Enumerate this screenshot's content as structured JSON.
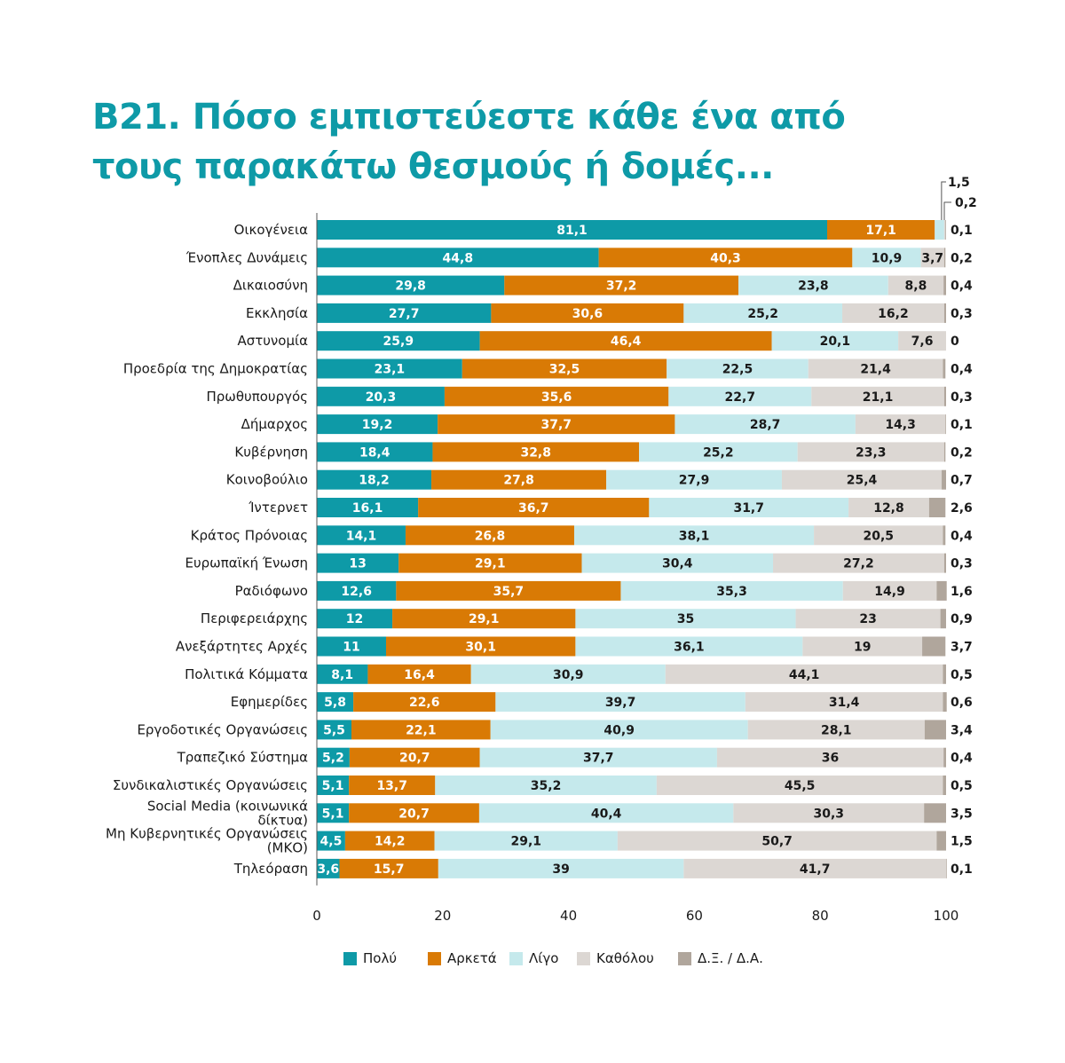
{
  "title": {
    "line1": "Β21. Πόσο εμπιστεύεστε κάθε ένα από",
    "line2": "τους παρακάτω θεσμούς ή δομές..."
  },
  "legend": [
    {
      "label": "Πολύ",
      "color": "#0e9aa7"
    },
    {
      "label": "Αρκετά",
      "color": "#d97a05"
    },
    {
      "label": "Λίγο",
      "color": "#c5e9ec"
    },
    {
      "label": "Καθόλου",
      "color": "#dcd7d3"
    },
    {
      "label": "Δ.Ξ. / Δ.Α.",
      "color": "#b0a69c"
    }
  ],
  "chart_data": {
    "type": "bar",
    "orientation": "horizontal",
    "stacked": true,
    "xlim": [
      0,
      100
    ],
    "xticks": [
      "0",
      "20",
      "40",
      "60",
      "80",
      "100"
    ],
    "top_annotations": [
      "1,5",
      "0,2"
    ],
    "categories": [
      "Οικογένεια",
      "Ένοπλες Δυνάμεις",
      "Δικαιοσύνη",
      "Εκκλησία",
      "Αστυνομία",
      "Προεδρία της Δημοκρατίας",
      "Πρωθυπουργός",
      "Δήμαρχος",
      "Κυβέρνηση",
      "Κοινοβούλιο",
      "Ίντερνετ",
      "Κράτος Πρόνοιας",
      "Ευρωπαϊκή Ένωση",
      "Ραδιόφωνο",
      "Περιφερειάρχης",
      "Ανεξάρτητες Αρχές",
      "Πολιτικά Κόμματα",
      "Εφημερίδες",
      "Εργοδοτικές Οργανώσεις",
      "Τραπεζικό Σύστημα",
      "Συνδικαλιστικές Οργανώσεις",
      "Social Media (κοινωνικά δίκτυα)",
      "Μη Κυβερνητικές Οργανώσεις (ΜΚΟ)",
      "Τηλεόραση"
    ],
    "series": [
      {
        "name": "Πολύ",
        "color": "#0e9aa7",
        "values": [
          81.1,
          44.8,
          29.8,
          27.7,
          25.9,
          23.1,
          20.3,
          19.2,
          18.4,
          18.2,
          16.1,
          14.1,
          13,
          12.6,
          12,
          11,
          8.1,
          5.8,
          5.5,
          5.2,
          5.1,
          5.1,
          4.5,
          3.6
        ],
        "labels": [
          "81,1",
          "44,8",
          "29,8",
          "27,7",
          "25,9",
          "23,1",
          "20,3",
          "19,2",
          "18,4",
          "18,2",
          "16,1",
          "14,1",
          "13",
          "12,6",
          "12",
          "11",
          "8,1",
          "5,8",
          "5,5",
          "5,2",
          "5,1",
          "5,1",
          "4,5",
          "3,6"
        ]
      },
      {
        "name": "Αρκετά",
        "color": "#d97a05",
        "values": [
          17.1,
          40.3,
          37.2,
          30.6,
          46.4,
          32.5,
          35.6,
          37.7,
          32.8,
          27.8,
          36.7,
          26.8,
          29.1,
          35.7,
          29.1,
          30.1,
          16.4,
          22.6,
          22.1,
          20.7,
          13.7,
          20.7,
          14.2,
          15.7
        ],
        "labels": [
          "17,1",
          "40,3",
          "37,2",
          "30,6",
          "46,4",
          "32,5",
          "35,6",
          "37,7",
          "32,8",
          "27,8",
          "36,7",
          "26,8",
          "29,1",
          "35,7",
          "29,1",
          "30,1",
          "16,4",
          "22,6",
          "22,1",
          "20,7",
          "13,7",
          "20,7",
          "14,2",
          "15,7"
        ]
      },
      {
        "name": "Λίγο",
        "color": "#c5e9ec",
        "values": [
          1.5,
          10.9,
          23.8,
          25.2,
          20.1,
          22.5,
          22.7,
          28.7,
          25.2,
          27.9,
          31.7,
          38.1,
          30.4,
          35.3,
          35,
          36.1,
          30.9,
          39.7,
          40.9,
          37.7,
          35.2,
          40.4,
          29.1,
          39
        ],
        "labels": [
          "",
          "10,9",
          "23,8",
          "25,2",
          "20,1",
          "22,5",
          "22,7",
          "28,7",
          "25,2",
          "27,9",
          "31,7",
          "38,1",
          "30,4",
          "35,3",
          "35",
          "36,1",
          "30,9",
          "39,7",
          "40,9",
          "37,7",
          "35,2",
          "40,4",
          "29,1",
          "39"
        ]
      },
      {
        "name": "Καθόλου",
        "color": "#dcd7d3",
        "values": [
          0.2,
          3.7,
          8.8,
          16.2,
          7.6,
          21.4,
          21.1,
          14.3,
          23.3,
          25.4,
          12.8,
          20.5,
          27.2,
          14.9,
          23,
          19,
          44.1,
          31.4,
          28.1,
          36,
          45.5,
          30.3,
          50.7,
          41.7
        ],
        "labels": [
          "",
          "3,7",
          "8,8",
          "16,2",
          "7,6",
          "21,4",
          "21,1",
          "14,3",
          "23,3",
          "25,4",
          "12,8",
          "20,5",
          "27,2",
          "14,9",
          "23",
          "19",
          "44,1",
          "31,4",
          "28,1",
          "36",
          "45,5",
          "30,3",
          "50,7",
          "41,7"
        ]
      },
      {
        "name": "Δ.Ξ. / Δ.Α.",
        "color": "#b0a69c",
        "values": [
          0.1,
          0.2,
          0.4,
          0.3,
          0,
          0.4,
          0.3,
          0.1,
          0.2,
          0.7,
          2.6,
          0.4,
          0.3,
          1.6,
          0.9,
          3.7,
          0.5,
          0.6,
          3.4,
          0.4,
          0.5,
          3.5,
          1.5,
          0.1
        ],
        "labels": [
          "0,1",
          "0,2",
          "0,4",
          "0,3",
          "0",
          "0,4",
          "0,3",
          "0,1",
          "0,2",
          "0,7",
          "2,6",
          "0,4",
          "0,3",
          "1,6",
          "0,9",
          "3,7",
          "0,5",
          "0,6",
          "3,4",
          "0,4",
          "0,5",
          "3,5",
          "1,5",
          "0,1"
        ]
      }
    ]
  }
}
